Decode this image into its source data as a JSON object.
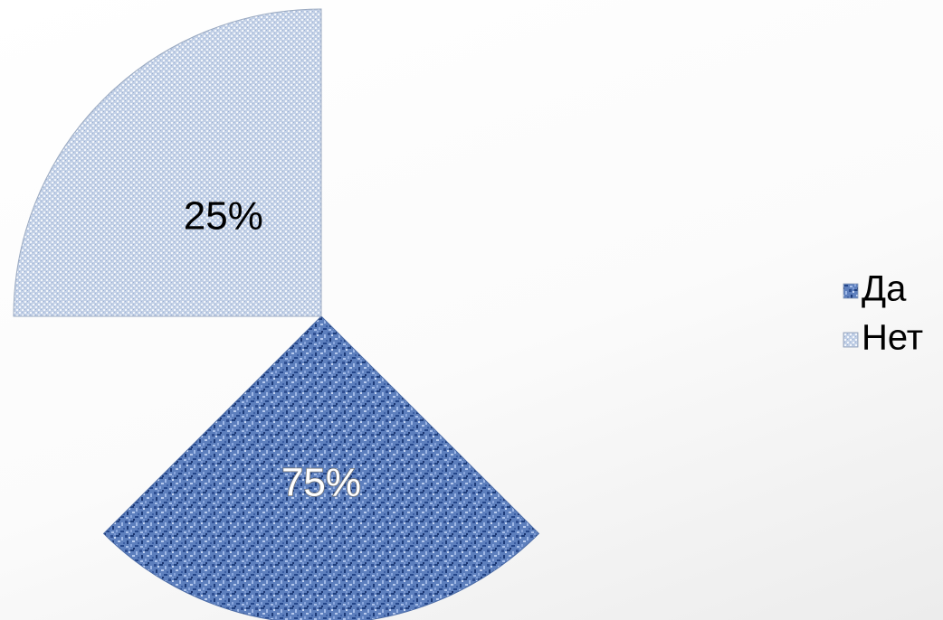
{
  "chart_data": {
    "type": "pie",
    "categories": [
      "Да",
      "Нет"
    ],
    "values": [
      75,
      25
    ],
    "data_labels": [
      "75%",
      "25%"
    ],
    "colors": {
      "Да": "#5a7cb8",
      "Нет": "#c9d6e8"
    },
    "legend_position": "right",
    "exploded": true
  }
}
